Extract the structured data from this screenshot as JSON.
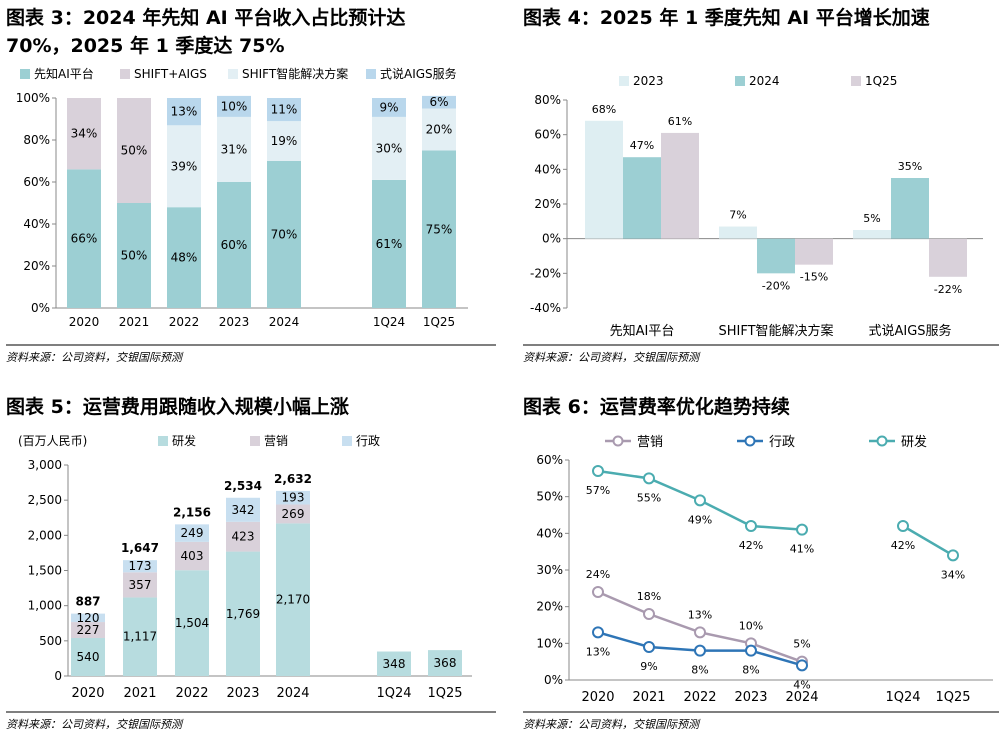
{
  "source_text": "资料来源：公司资料，交银国际预测",
  "figures": [
    {
      "title_line1": "图表 3：2024 年先知 AI 平台收入占比预计达",
      "title_line2": "70%，2025 年 1 季度达 75%"
    },
    {
      "title_line1": "图表 4：2025 年 1 季度先知 AI 平台增长加速"
    },
    {
      "title_line1": "图表 5：运营费用跟随收入规模小幅上涨",
      "unit": "(百万人民币)"
    },
    {
      "title_line1": "图表 6：运营费率优化趋势持续"
    }
  ],
  "colors": {
    "teal": "#9ccfd3",
    "grey": "#d9d1da",
    "lightblue": "#c8dff0",
    "lighttealblue": "#deeef2",
    "navy": "#2e75b6",
    "purple": "#a99aaf",
    "tealline": "#4bacb0"
  },
  "chart_data": [
    {
      "type": "bar",
      "stacked": true,
      "categories": [
        "2020",
        "2021",
        "2022",
        "2023",
        "2024",
        "1Q24",
        "1Q25"
      ],
      "series": [
        {
          "name": "先知AI平台",
          "color": "#9ccfd3",
          "values": [
            66,
            50,
            48,
            60,
            70,
            61,
            75
          ]
        },
        {
          "name": "SHIFT+AIGS",
          "color": "#d9d1da",
          "values": [
            34,
            50,
            null,
            null,
            null,
            null,
            null
          ]
        },
        {
          "name": "SHIFT智能解决方案",
          "color": "#e3eff4",
          "values": [
            null,
            null,
            39,
            31,
            19,
            30,
            20
          ]
        },
        {
          "name": "式说AIGS服务",
          "color": "#b9d7ec",
          "values": [
            null,
            null,
            13,
            10,
            11,
            9,
            6
          ]
        }
      ],
      "yticks": [
        "0%",
        "20%",
        "40%",
        "60%",
        "80%",
        "100%"
      ],
      "ylim": [
        0,
        100
      ],
      "legend": "top"
    },
    {
      "type": "bar",
      "categories": [
        "先知AI平台",
        "SHIFT智能解决方案",
        "式说AIGS服务"
      ],
      "series": [
        {
          "name": "2023",
          "color": "#deeef2",
          "values": [
            68,
            7,
            5
          ]
        },
        {
          "name": "2024",
          "color": "#9ccfd3",
          "values": [
            47,
            -20,
            35
          ]
        },
        {
          "name": "1Q25",
          "color": "#d9d1da",
          "values": [
            61,
            -15,
            -22
          ]
        }
      ],
      "yticks": [
        "-40%",
        "-20%",
        "0%",
        "20%",
        "40%",
        "60%",
        "80%"
      ],
      "ylim": [
        -40,
        80
      ],
      "legend": "top"
    },
    {
      "type": "bar",
      "stacked": true,
      "categories": [
        "2020",
        "2021",
        "2022",
        "2023",
        "2024",
        "1Q24",
        "1Q25"
      ],
      "series": [
        {
          "name": "研发",
          "color": "#b7dcdf",
          "values": [
            540,
            1117,
            1504,
            1769,
            2170,
            348,
            368
          ]
        },
        {
          "name": "营销",
          "color": "#d9d1da",
          "values": [
            227,
            357,
            403,
            423,
            269,
            null,
            null
          ]
        },
        {
          "name": "行政",
          "color": "#c8dff0",
          "values": [
            120,
            173,
            249,
            342,
            193,
            null,
            null
          ]
        }
      ],
      "totals": [
        887,
        1647,
        2156,
        2534,
        2632,
        null,
        null
      ],
      "value_labels": [
        [
          "540",
          "1,117",
          "1,504",
          "1,769",
          "2,170",
          "348",
          "368"
        ],
        [
          "227",
          "357",
          "403",
          "423",
          "269",
          "",
          ""
        ],
        [
          "120",
          "173",
          "249",
          "342",
          "193",
          "",
          ""
        ]
      ],
      "total_labels": [
        "887",
        "1,647",
        "2,156",
        "2,534",
        "2,632",
        "",
        ""
      ],
      "yticks": [
        "0",
        "500",
        "1,000",
        "1,500",
        "2,000",
        "2,500",
        "3,000"
      ],
      "ylim": [
        0,
        3000
      ],
      "legend": "top"
    },
    {
      "type": "line",
      "categories": [
        "2020",
        "2021",
        "2022",
        "2023",
        "2024",
        "1Q24",
        "1Q25"
      ],
      "series": [
        {
          "name": "营销",
          "color": "#a99aaf",
          "values": [
            24,
            18,
            13,
            10,
            5,
            null,
            null
          ]
        },
        {
          "name": "行政",
          "color": "#2e75b6",
          "values": [
            13,
            9,
            8,
            8,
            4,
            null,
            null
          ]
        },
        {
          "name": "研发",
          "color": "#4bacb0",
          "values": [
            57,
            55,
            49,
            42,
            41,
            42,
            34
          ]
        }
      ],
      "yticks": [
        "0%",
        "10%",
        "20%",
        "30%",
        "40%",
        "50%",
        "60%"
      ],
      "ylim": [
        0,
        60
      ],
      "legend": "top"
    }
  ]
}
